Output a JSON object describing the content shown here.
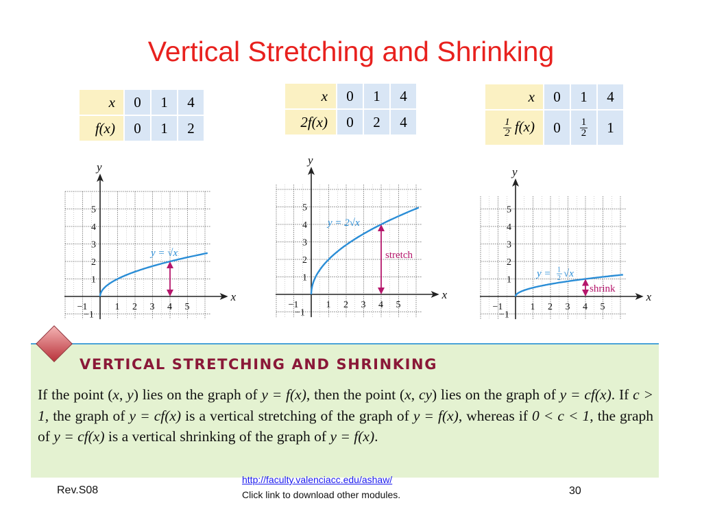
{
  "title": "Vertical Stretching and Shrinking",
  "colors": {
    "title": "#e8211e",
    "curve": "#2a8dd6",
    "arrow": "#b5166b",
    "box_bg": "#e4f2d1",
    "heading": "#8a1838"
  },
  "tables": [
    {
      "row1_label": "x",
      "row1": [
        "0",
        "1",
        "4"
      ],
      "row2_label": "f(x)",
      "row2": [
        "0",
        "1",
        "2"
      ]
    },
    {
      "row1_label": "x",
      "row1": [
        "0",
        "1",
        "4"
      ],
      "row2_label": "2f(x)",
      "row2": [
        "0",
        "2",
        "4"
      ]
    },
    {
      "row1_label": "x",
      "row1": [
        "0",
        "1",
        "4"
      ],
      "row2_label": "f(x)",
      "row2_label_coef": {
        "num": "1",
        "den": "2"
      },
      "row2": [
        "0",
        "",
        "1"
      ],
      "row2_frac": {
        "num": "1",
        "den": "2"
      }
    }
  ],
  "graphs": {
    "x_label": "x",
    "y_label": "y",
    "x_ticks": [
      "−1",
      "1",
      "2",
      "3",
      "4",
      "5"
    ],
    "y_ticks": [
      "−1",
      "1",
      "2",
      "3",
      "4",
      "5"
    ],
    "g1": {
      "equation": "y = √x",
      "coef": 2,
      "note": ""
    },
    "g2": {
      "equation": "y = 2√x",
      "coef": 4,
      "note": "stretch"
    },
    "g3": {
      "equation": "y = ",
      "eq_frac": {
        "num": "1",
        "den": "2"
      },
      "equation_tail": "√x",
      "coef": 1,
      "note": "shrink"
    }
  },
  "chart_data": [
    {
      "type": "line",
      "series": [
        {
          "values_x": [
            0,
            1,
            4,
            6
          ],
          "values_y": [
            0,
            1,
            2,
            2.449
          ]
        }
      ],
      "xlabel": "x",
      "ylabel": "y",
      "annotations": [
        "y = √x"
      ]
    },
    {
      "type": "line",
      "series": [
        {
          "values_x": [
            0,
            1,
            4,
            6
          ],
          "values_y": [
            0,
            2,
            4,
            4.899
          ]
        }
      ],
      "xlabel": "x",
      "ylabel": "y",
      "annotations": [
        "y = 2√x",
        "stretch"
      ]
    },
    {
      "type": "line",
      "series": [
        {
          "values_x": [
            0,
            1,
            4,
            6
          ],
          "values_y": [
            0,
            0.5,
            1,
            1.225
          ]
        }
      ],
      "xlabel": "x",
      "ylabel": "y",
      "annotations": [
        "y = ½√x",
        "shrink"
      ]
    }
  ],
  "box": {
    "heading": "VERTICAL STRETCHING AND SHRINKING",
    "p1": "If the point (",
    "p2": ", ",
    "p3": ") lies on the graph of ",
    "p4": ", then the point (",
    "p5": ", ",
    "p6": ") lies on the graph of ",
    "p7": ". If ",
    "p8": ", the graph of ",
    "p9": " is a vertical stretching of the graph of ",
    "p10": ", whereas if ",
    "p11": ", the graph of ",
    "p12": " is a vertical shrinking of the graph of ",
    "p13": ".",
    "x": "x",
    "y": "y",
    "cy": "cy",
    "y_eq_fx": "y = f(x)",
    "y_eq_cfx": "y = cf(x)",
    "c_gt_1": "c > 1",
    "c_range": "0 < c < 1"
  },
  "footer": {
    "left": "Rev.S08",
    "link": "http://faculty.valenciacc.edu/ashaw/",
    "note": "Click link to download other modules.",
    "page": "30"
  }
}
